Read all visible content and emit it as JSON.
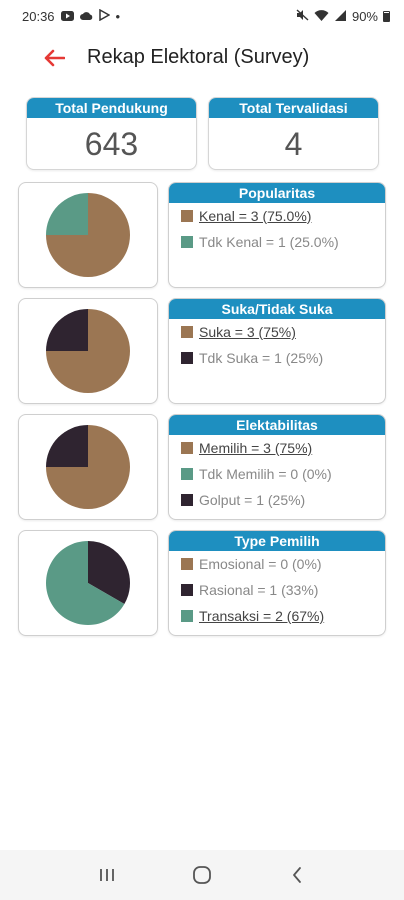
{
  "status_bar": {
    "time": "20:36",
    "dot": "•",
    "battery": "90%",
    "left_icons": [
      "youtube-icon",
      "cloud-icon",
      "play-store-icon"
    ],
    "right_icons": [
      "mute-icon",
      "wifi-icon",
      "signal-icon",
      "battery-icon"
    ]
  },
  "header": {
    "title": "Rekap Elektoral (Survey)",
    "back_icon": "arrow-left-icon",
    "accent_color": "#e53935"
  },
  "summary": {
    "total_pendukung_label": "Total Pendukung",
    "total_pendukung_value": "643",
    "total_tervalidasi_label": "Total Tervalidasi",
    "total_tervalidasi_value": "4",
    "header_color": "#1e8fc0"
  },
  "colors": {
    "brown": "#9b7653",
    "teal": "#5a9a86",
    "dark": "#2f2430"
  },
  "panels": [
    {
      "title": "Popularitas",
      "items": [
        {
          "label": "Kenal = 3 (75.0%)",
          "value": 3,
          "color": "#9b7653",
          "highlight": true
        },
        {
          "label": "Tdk Kenal = 1 (25.0%)",
          "value": 1,
          "color": "#5a9a86",
          "highlight": false
        }
      ]
    },
    {
      "title": "Suka/Tidak Suka",
      "items": [
        {
          "label": "Suka = 3 (75%)",
          "value": 3,
          "color": "#9b7653",
          "highlight": true
        },
        {
          "label": "Tdk Suka = 1 (25%)",
          "value": 1,
          "color": "#2f2430",
          "highlight": false
        }
      ]
    },
    {
      "title": "Elektabilitas",
      "items": [
        {
          "label": "Memilih = 3 (75%)",
          "value": 3,
          "color": "#9b7653",
          "highlight": true
        },
        {
          "label": "Tdk Memilih = 0 (0%)",
          "value": 0,
          "color": "#5a9a86",
          "highlight": false
        },
        {
          "label": "Golput = 1 (25%)",
          "value": 1,
          "color": "#2f2430",
          "highlight": false
        }
      ]
    },
    {
      "title": "Type Pemilih",
      "items": [
        {
          "label": "Emosional = 0 (0%)",
          "value": 0,
          "color": "#9b7653",
          "highlight": false
        },
        {
          "label": "Rasional = 1 (33%)",
          "value": 1,
          "color": "#2f2430",
          "highlight": false
        },
        {
          "label": "Transaksi = 2 (67%)",
          "value": 2,
          "color": "#5a9a86",
          "highlight": true
        }
      ]
    }
  ],
  "nav_bar": {
    "buttons": [
      "recent-apps-icon",
      "home-icon",
      "back-icon"
    ]
  }
}
